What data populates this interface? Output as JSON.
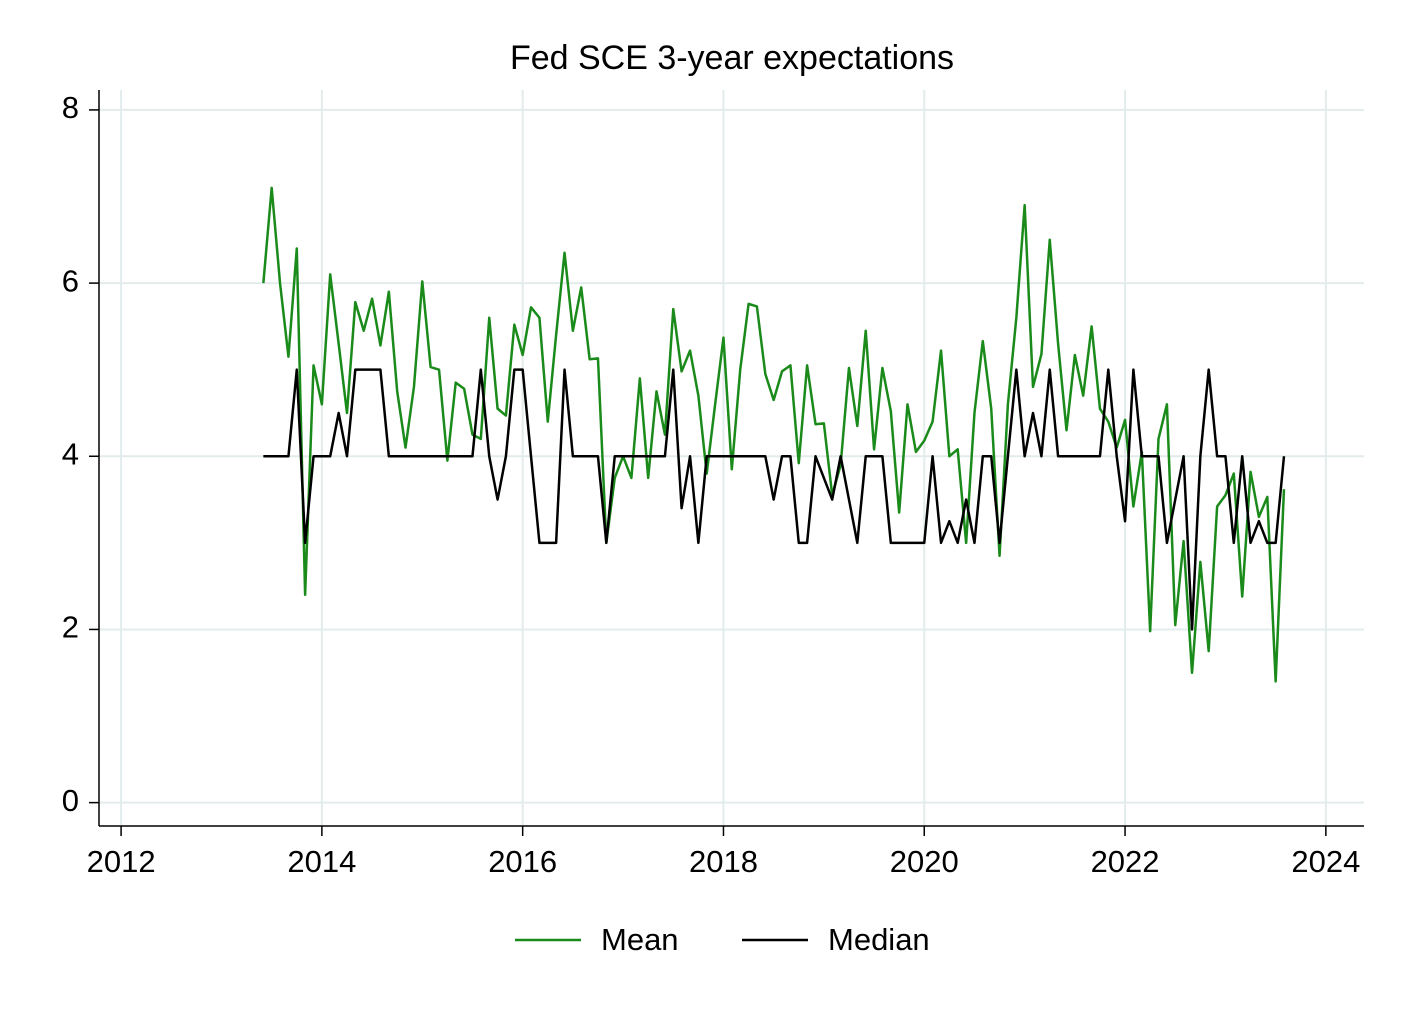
{
  "chart_data": {
    "type": "line",
    "title": "Fed SCE 3-year expectations",
    "x": [
      2013.417,
      2013.5,
      2013.583,
      2013.667,
      2013.75,
      2013.833,
      2013.917,
      2014.0,
      2014.083,
      2014.167,
      2014.25,
      2014.333,
      2014.417,
      2014.5,
      2014.583,
      2014.667,
      2014.75,
      2014.833,
      2014.917,
      2015.0,
      2015.083,
      2015.167,
      2015.25,
      2015.333,
      2015.417,
      2015.5,
      2015.583,
      2015.667,
      2015.75,
      2015.833,
      2015.917,
      2016.0,
      2016.083,
      2016.167,
      2016.25,
      2016.333,
      2016.417,
      2016.5,
      2016.583,
      2016.667,
      2016.75,
      2016.833,
      2016.917,
      2017.0,
      2017.083,
      2017.167,
      2017.25,
      2017.333,
      2017.417,
      2017.5,
      2017.583,
      2017.667,
      2017.75,
      2017.833,
      2017.917,
      2018.0,
      2018.083,
      2018.167,
      2018.25,
      2018.333,
      2018.417,
      2018.5,
      2018.583,
      2018.667,
      2018.75,
      2018.833,
      2018.917,
      2019.0,
      2019.083,
      2019.167,
      2019.25,
      2019.333,
      2019.417,
      2019.5,
      2019.583,
      2019.667,
      2019.75,
      2019.833,
      2019.917,
      2020.0,
      2020.083,
      2020.167,
      2020.25,
      2020.333,
      2020.417,
      2020.5,
      2020.583,
      2020.667,
      2020.75,
      2020.833,
      2020.917,
      2021.0,
      2021.083,
      2021.167,
      2021.25,
      2021.333,
      2021.417,
      2021.5,
      2021.583,
      2021.667,
      2021.75,
      2021.833,
      2021.917,
      2022.0,
      2022.083,
      2022.167,
      2022.25,
      2022.333,
      2022.417,
      2022.5,
      2022.583,
      2022.667,
      2022.75,
      2022.833,
      2022.917,
      2023.0,
      2023.083,
      2023.167,
      2023.25,
      2023.333,
      2023.417,
      2023.5,
      2023.583
    ],
    "series": [
      {
        "name": "Mean",
        "color": "#1a8a1a",
        "values": [
          6.0,
          7.1,
          6.0,
          5.15,
          6.4,
          2.4,
          5.05,
          4.6,
          6.1,
          5.3,
          4.5,
          5.78,
          5.45,
          5.82,
          5.28,
          5.9,
          4.75,
          4.1,
          4.8,
          6.02,
          5.03,
          5.0,
          3.95,
          4.85,
          4.78,
          4.25,
          4.2,
          5.6,
          4.55,
          4.47,
          5.52,
          5.17,
          5.72,
          5.6,
          4.4,
          5.4,
          6.35,
          5.45,
          5.95,
          5.12,
          5.13,
          3.0,
          3.75,
          4.0,
          3.75,
          4.9,
          3.75,
          4.75,
          4.25,
          5.7,
          4.98,
          5.22,
          4.7,
          3.8,
          4.6,
          5.37,
          3.85,
          5.0,
          5.76,
          5.73,
          4.95,
          4.65,
          4.98,
          5.05,
          3.92,
          5.05,
          4.37,
          4.38,
          3.55,
          3.9,
          5.02,
          4.35,
          5.45,
          4.08,
          5.02,
          4.52,
          3.35,
          4.6,
          4.05,
          4.18,
          4.4,
          5.22,
          4.0,
          4.08,
          3.0,
          4.5,
          5.33,
          4.55,
          2.85,
          4.6,
          5.6,
          6.9,
          4.8,
          5.18,
          6.5,
          5.3,
          4.3,
          5.17,
          4.7,
          5.5,
          4.55,
          4.4,
          4.1,
          4.42,
          3.42,
          4.05,
          1.98,
          4.2,
          4.6,
          2.05,
          3.02,
          1.5,
          2.78,
          1.75,
          3.42,
          3.55,
          3.8,
          2.38,
          3.82,
          3.3,
          3.53,
          1.4,
          3.62
        ]
      },
      {
        "name": "Median",
        "color": "#000000",
        "values": [
          4,
          4,
          4,
          4,
          5,
          3,
          4,
          4,
          4,
          4.5,
          4,
          5,
          5,
          5,
          5,
          4,
          4,
          4,
          4,
          4,
          4,
          4,
          4,
          4,
          4,
          4,
          5,
          4,
          3.5,
          4,
          5,
          5,
          4,
          3,
          3,
          3,
          5,
          4,
          4,
          4,
          4,
          3,
          4,
          4,
          4,
          4,
          4,
          4,
          4,
          5,
          3.4,
          4,
          3,
          4,
          4,
          4,
          4,
          4,
          4,
          4,
          4,
          3.5,
          4,
          4,
          3,
          3,
          4,
          3.75,
          3.5,
          4,
          3.5,
          3,
          4,
          4,
          4,
          3,
          3,
          3,
          3,
          3,
          4,
          3,
          3.25,
          3,
          3.5,
          3,
          4,
          4,
          3,
          4,
          5,
          4,
          4.5,
          4,
          5,
          4,
          4,
          4,
          4,
          4,
          4,
          5,
          4,
          3.25,
          5,
          4,
          4,
          4,
          3,
          3.5,
          4,
          2,
          4,
          5,
          4,
          4,
          3,
          4,
          3,
          3.25,
          3,
          3,
          4
        ]
      }
    ],
    "xlim": [
      2011.78,
      2024.38
    ],
    "ylim": [
      -0.27,
      8.23
    ],
    "xticks": [
      2012,
      2014,
      2016,
      2018,
      2020,
      2022,
      2024
    ],
    "yticks": [
      0,
      2,
      4,
      6,
      8
    ],
    "grid": true,
    "legend": "bottom"
  }
}
